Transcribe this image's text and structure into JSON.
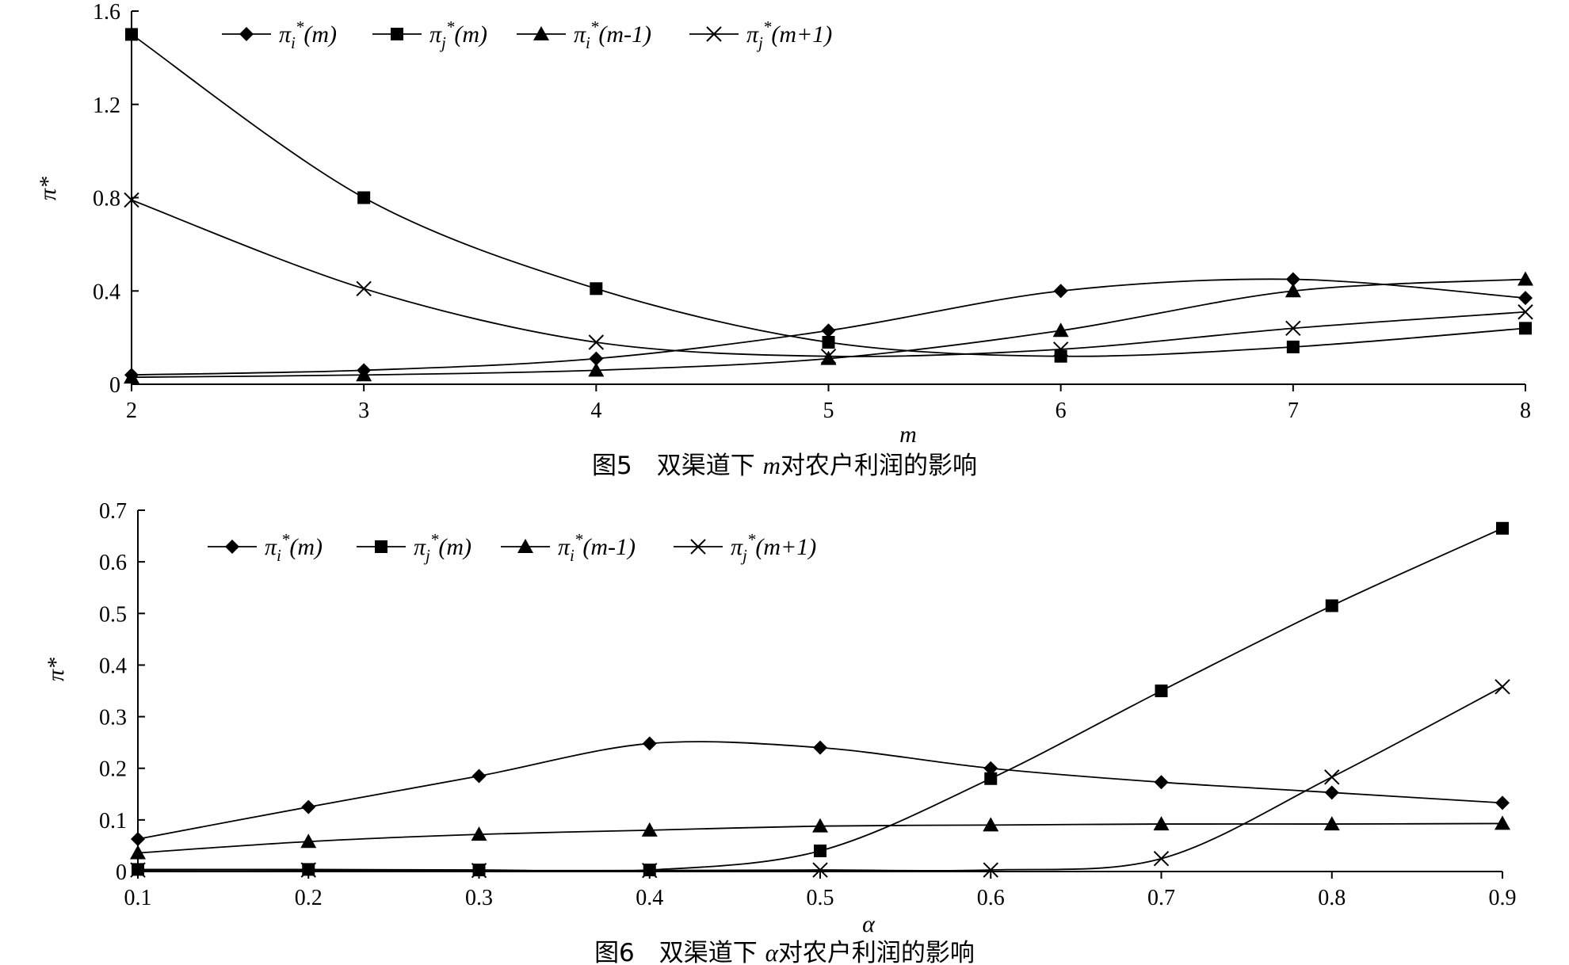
{
  "chart_data": [
    {
      "type": "line",
      "title": "",
      "caption": {
        "prefix": "图5　双渠道下 ",
        "var": "m",
        "suffix": "对农户利润的影响"
      },
      "xlabel": "m",
      "ylabel": "π*",
      "x": [
        2,
        3,
        4,
        5,
        6,
        7,
        8
      ],
      "xticks": [
        "2",
        "3",
        "4",
        "5",
        "6",
        "7",
        "8"
      ],
      "yticks": [
        "0",
        "0.4",
        "0.8",
        "1.2",
        "1.6"
      ],
      "xlim": [
        2,
        8
      ],
      "ylim": [
        0,
        1.6
      ],
      "legend_position": "top",
      "series": [
        {
          "name": "π_i*(m)",
          "label": {
            "base": "π",
            "sub": "i",
            "sup": "*",
            "arg": "(m)"
          },
          "marker": "diamond",
          "values": [
            0.04,
            0.06,
            0.11,
            0.23,
            0.4,
            0.45,
            0.37
          ]
        },
        {
          "name": "π_j*(m)",
          "label": {
            "base": "π",
            "sub": "j",
            "sup": "*",
            "arg": "(m)"
          },
          "marker": "square",
          "values": [
            1.5,
            0.8,
            0.41,
            0.18,
            0.12,
            0.16,
            0.24
          ]
        },
        {
          "name": "π_i*(m-1)",
          "label": {
            "base": "π",
            "sub": "i",
            "sup": "*",
            "arg": "(m-1)"
          },
          "marker": "triangle",
          "values": [
            0.03,
            0.04,
            0.06,
            0.11,
            0.23,
            0.4,
            0.45
          ]
        },
        {
          "name": "π_j*(m+1)",
          "label": {
            "base": "π",
            "sub": "j",
            "sup": "*",
            "arg": "(m+1)"
          },
          "marker": "x",
          "values": [
            0.79,
            0.41,
            0.18,
            0.12,
            0.15,
            0.24,
            0.31
          ]
        }
      ]
    },
    {
      "type": "line",
      "title": "",
      "caption": {
        "prefix": "图6　双渠道下 ",
        "var": "α",
        "suffix": "对农户利润的影响"
      },
      "xlabel": "α",
      "ylabel": "π*",
      "x": [
        0.1,
        0.2,
        0.3,
        0.4,
        0.5,
        0.6,
        0.7,
        0.8,
        0.9
      ],
      "xticks": [
        "0.1",
        "0.2",
        "0.3",
        "0.4",
        "0.5",
        "0.6",
        "0.7",
        "0.8",
        "0.9"
      ],
      "yticks": [
        "0",
        "0.1",
        "0.2",
        "0.3",
        "0.4",
        "0.5",
        "0.6",
        "0.7"
      ],
      "xlim": [
        0.1,
        0.9
      ],
      "ylim": [
        0,
        0.7
      ],
      "legend_position": "top",
      "series": [
        {
          "name": "π_i*(m)",
          "label": {
            "base": "π",
            "sub": "i",
            "sup": "*",
            "arg": "(m)"
          },
          "marker": "diamond",
          "values": [
            0.063,
            0.125,
            0.185,
            0.248,
            0.24,
            0.2,
            0.173,
            0.153,
            0.133
          ]
        },
        {
          "name": "π_j*(m)",
          "label": {
            "base": "π",
            "sub": "j",
            "sup": "*",
            "arg": "(m)"
          },
          "marker": "square",
          "values": [
            0.004,
            0.004,
            0.003,
            0.003,
            0.04,
            0.18,
            0.35,
            0.515,
            0.665
          ]
        },
        {
          "name": "π_i*(m-1)",
          "label": {
            "base": "π",
            "sub": "i",
            "sup": "*",
            "arg": "(m-1)"
          },
          "marker": "triangle",
          "values": [
            0.036,
            0.058,
            0.072,
            0.08,
            0.088,
            0.09,
            0.092,
            0.092,
            0.093
          ]
        },
        {
          "name": "π_j*(m+1)",
          "label": {
            "base": "π",
            "sub": "j",
            "sup": "*",
            "arg": "(m+1)"
          },
          "marker": "x",
          "values": [
            0.003,
            0.003,
            0.002,
            0.002,
            0.003,
            0.003,
            0.025,
            0.183,
            0.358
          ]
        }
      ]
    }
  ]
}
